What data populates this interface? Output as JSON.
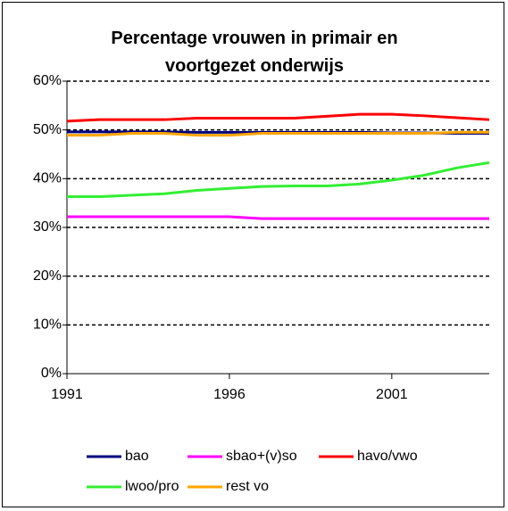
{
  "chart_data": {
    "type": "line",
    "title": "Percentage vrouwen in primair en voortgezet onderwijs",
    "x": [
      1991,
      1992,
      1993,
      1994,
      1995,
      1996,
      1997,
      1998,
      1999,
      2000,
      2001,
      2002,
      2003,
      2004
    ],
    "xlim": [
      1991,
      2004
    ],
    "xticks": [
      1991,
      1996,
      2001
    ],
    "ylim": [
      0,
      60
    ],
    "yticks": [
      {
        "value": 0,
        "label": "0%"
      },
      {
        "value": 10,
        "label": "10%"
      },
      {
        "value": 20,
        "label": "20%"
      },
      {
        "value": 30,
        "label": "30%"
      },
      {
        "value": 40,
        "label": "40%"
      },
      {
        "value": 50,
        "label": "50%"
      },
      {
        "value": 60,
        "label": "60%"
      }
    ],
    "grid": true,
    "series": [
      {
        "name": "bao",
        "color": "#000080",
        "values": [
          49.6,
          49.6,
          49.6,
          49.6,
          49.5,
          49.5,
          49.5,
          49.5,
          49.5,
          49.5,
          49.4,
          49.4,
          49.3,
          49.3
        ]
      },
      {
        "name": "sbao+(v)so",
        "color": "#ff00ff",
        "values": [
          32.2,
          32.2,
          32.2,
          32.2,
          32.2,
          32.2,
          31.8,
          31.8,
          31.8,
          31.8,
          31.8,
          31.8,
          31.8,
          31.8
        ]
      },
      {
        "name": "havo/vwo",
        "color": "#ff0000",
        "values": [
          51.8,
          52.1,
          52.1,
          52.1,
          52.4,
          52.4,
          52.4,
          52.4,
          52.8,
          53.2,
          53.2,
          52.9,
          52.5,
          52.1
        ]
      },
      {
        "name": "lwoo/pro",
        "color": "#33ee33",
        "values": [
          36.3,
          36.3,
          36.6,
          36.9,
          37.6,
          38.0,
          38.4,
          38.5,
          38.5,
          38.9,
          39.7,
          40.7,
          42.2,
          43.3
        ]
      },
      {
        "name": "rest vo",
        "color": "#ffa500",
        "values": [
          48.9,
          48.9,
          49.3,
          49.3,
          48.9,
          48.9,
          49.3,
          49.3,
          49.3,
          49.3,
          49.3,
          49.3,
          49.5,
          49.5
        ]
      }
    ]
  }
}
